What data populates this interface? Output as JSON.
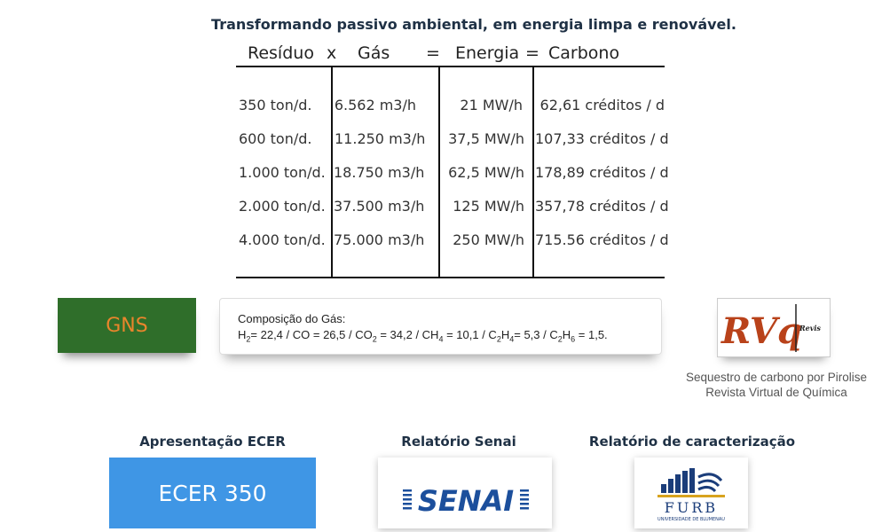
{
  "headline": "Transformando passivo ambiental, em energia limpa e renovável.",
  "equation": {
    "residuo": "Resíduo",
    "x": "x",
    "gas": "Gás",
    "eq1": "=",
    "energia": "Energia",
    "eq2": "=",
    "carbono": "Carbono"
  },
  "table": {
    "rows": [
      {
        "residuo": "350 ton/d.",
        "gas": "6.562 m3/h",
        "energia": "21 MW/h",
        "carbono": "62,61 créditos / d"
      },
      {
        "residuo": "600 ton/d.",
        "gas": "11.250 m3/h",
        "energia": "37,5 MW/h",
        "carbono": "107,33 créditos / d"
      },
      {
        "residuo": "1.000 ton/d.",
        "gas": "18.750 m3/h",
        "energia": "62,5 MW/h",
        "carbono": "178,89 créditos / d"
      },
      {
        "residuo": "2.000 ton/d.",
        "gas": "37.500 m3/h",
        "energia": "125 MW/h",
        "carbono": "357,78 créditos / d"
      },
      {
        "residuo": "4.000 ton/d.",
        "gas": "75.000 m3/h",
        "energia": "250 MW/h",
        "carbono": "715.56 créditos / d"
      }
    ]
  },
  "gns_button": "GNS",
  "composition": {
    "title": "Composição do Gás:",
    "formula": "H2= 22,4 / CO = 26,5 / CO2 = 34,2 / CH4 = 10,1 / C2H4= 5,3 / C2H6 = 1,5."
  },
  "rvq_logo": {
    "letters": "RVq",
    "small": "Revis"
  },
  "rvq_caption": {
    "line1": "Sequestro de carbono por Pirolise",
    "line2": "Revista Virtual de Química"
  },
  "sections": {
    "ecer_title": "Apresentação ECER",
    "ecer_button": "ECER 350",
    "senai_title": "Relatório Senai",
    "senai_logo": "SENAI",
    "furb_title": "Relatório de caracterização",
    "furb_logo": "FURB",
    "furb_sub": "UNIVERSIDADE DE BLUMENAU"
  },
  "colors": {
    "heading": "#1f3145",
    "gns_bg": "#2f6e2a",
    "gns_text": "#e9852c",
    "ecer_bg": "#3f96e5",
    "senai_blue": "#1c4f9c",
    "furb_blue": "#1b3d7a"
  }
}
